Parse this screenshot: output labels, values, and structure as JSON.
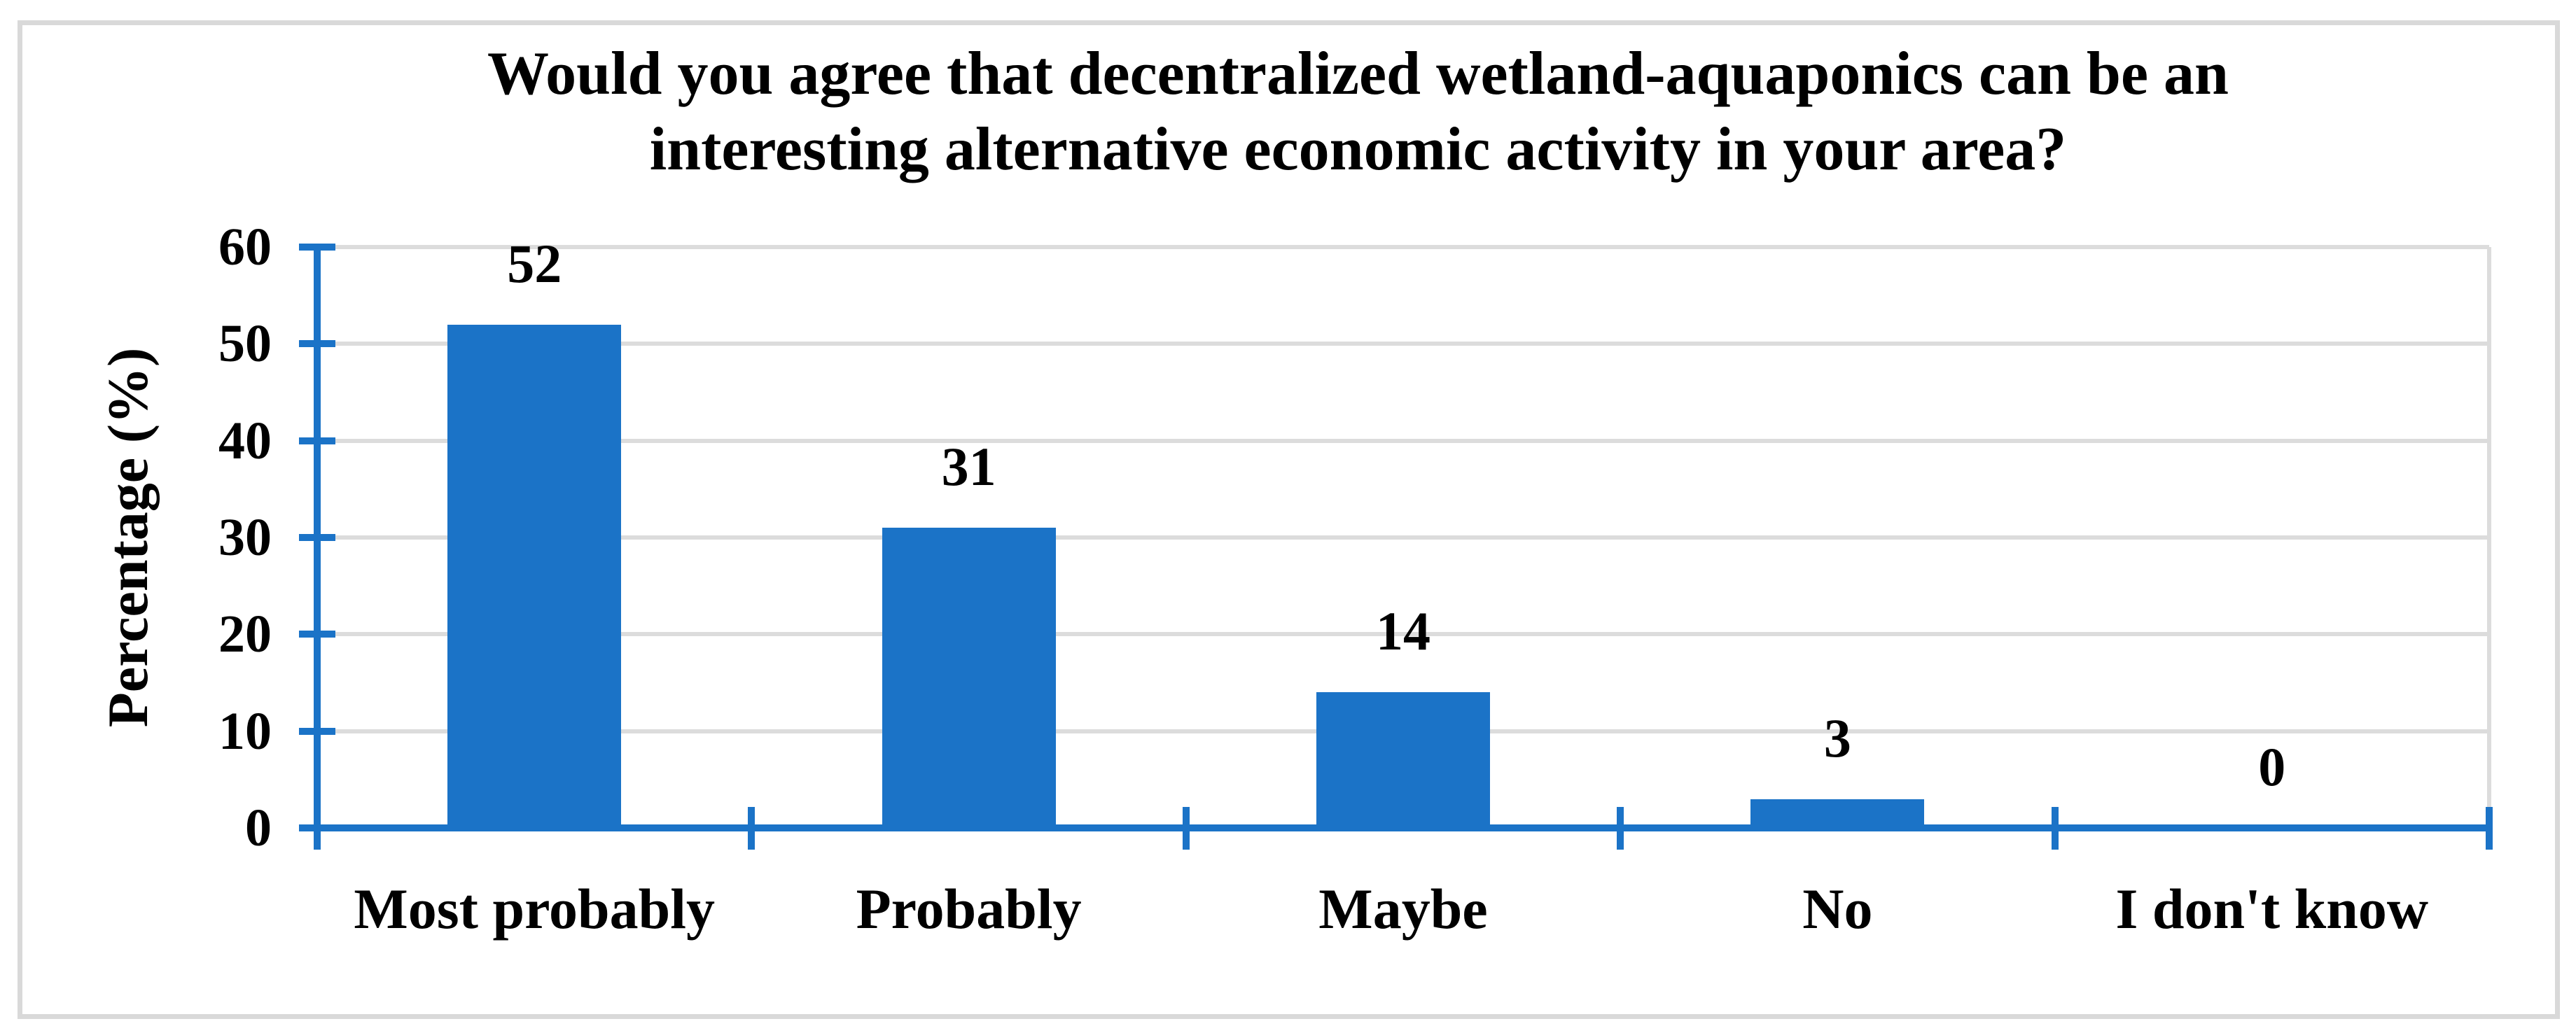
{
  "chart_data": {
    "type": "bar",
    "title": "Would you agree that decentralized wetland-aquaponics can be an interesting alternative economic activity in your area?",
    "title_line1": "Would you agree that decentralized wetland-aquaponics can be an",
    "title_line2": "interesting alternative economic activity in your area?",
    "categories": [
      "Most probably",
      "Probably",
      "Maybe",
      "No",
      "I don't know"
    ],
    "values": [
      52,
      31,
      14,
      3,
      0
    ],
    "data_labels": [
      "52",
      "31",
      "14",
      "3",
      "0"
    ],
    "xlabel": "",
    "ylabel": "Percentage (%)",
    "ylim": [
      0,
      60
    ],
    "yticks": [
      0,
      10,
      20,
      30,
      40,
      50,
      60
    ],
    "grid": true,
    "legend": false,
    "colors": {
      "bar": "#1B73C7",
      "axis": "#1B73C7",
      "gridline": "#DCDCDC",
      "frame_border": "#D9D9D9",
      "text": "#000000",
      "background": "#FFFFFF"
    }
  }
}
